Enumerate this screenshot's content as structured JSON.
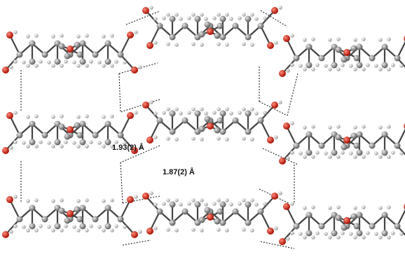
{
  "annotations": {
    "bond_a": "1.93(2) Å",
    "bond_b": "1.87(2) Å"
  }
}
